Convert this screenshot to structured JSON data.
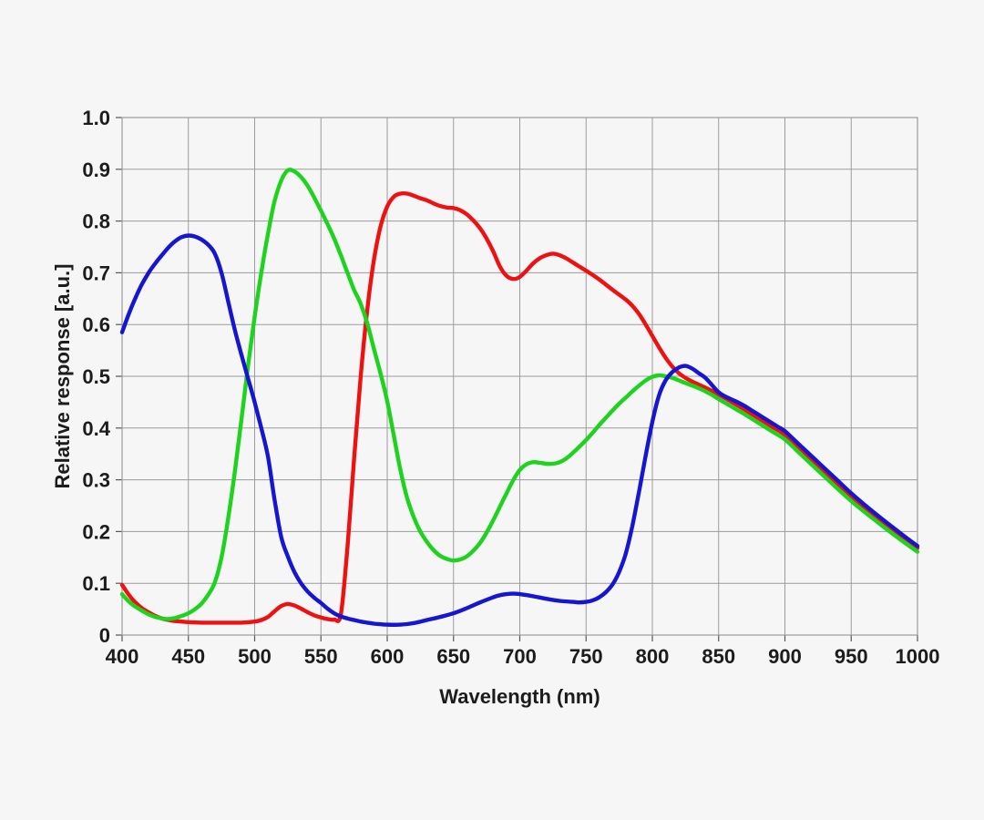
{
  "page": {
    "background": "#f6f6f6"
  },
  "chart_data": {
    "type": "line",
    "title": "",
    "xlabel": "Wavelength (nm)",
    "ylabel": "Relative response [a.u.]",
    "xlim": [
      400,
      1000
    ],
    "ylim": [
      0,
      1.0
    ],
    "grid": true,
    "legend": "none",
    "x_ticks": [
      400,
      450,
      500,
      550,
      600,
      650,
      700,
      750,
      800,
      850,
      900,
      950,
      1000
    ],
    "y_ticks": [
      0,
      0.1,
      0.2,
      0.3,
      0.4,
      0.5,
      0.6,
      0.7,
      0.8,
      0.9,
      1.0
    ],
    "y_tick_labels": [
      "0",
      "0.1",
      "0.2",
      "0.3",
      "0.4",
      "0.5",
      "0.6",
      "0.7",
      "0.8",
      "0.9",
      "1.0"
    ],
    "colors": {
      "grid": "#9b9b9b",
      "spine": "#9b9b9b",
      "tick": "#555555",
      "text": "#1c1c1c"
    },
    "series": [
      {
        "name": "red",
        "color": "#ee1111",
        "points": [
          [
            400,
            0.097
          ],
          [
            405,
            0.078
          ],
          [
            410,
            0.063
          ],
          [
            415,
            0.052
          ],
          [
            420,
            0.044
          ],
          [
            425,
            0.037
          ],
          [
            430,
            0.032
          ],
          [
            435,
            0.029
          ],
          [
            440,
            0.027
          ],
          [
            445,
            0.026
          ],
          [
            450,
            0.025
          ],
          [
            460,
            0.024
          ],
          [
            470,
            0.024
          ],
          [
            480,
            0.024
          ],
          [
            490,
            0.024
          ],
          [
            500,
            0.026
          ],
          [
            505,
            0.029
          ],
          [
            510,
            0.035
          ],
          [
            515,
            0.046
          ],
          [
            520,
            0.056
          ],
          [
            525,
            0.06
          ],
          [
            530,
            0.057
          ],
          [
            535,
            0.051
          ],
          [
            540,
            0.044
          ],
          [
            545,
            0.038
          ],
          [
            550,
            0.034
          ],
          [
            555,
            0.031
          ],
          [
            560,
            0.03
          ],
          [
            565,
            0.04
          ],
          [
            570,
            0.17
          ],
          [
            575,
            0.34
          ],
          [
            580,
            0.5
          ],
          [
            585,
            0.63
          ],
          [
            590,
            0.725
          ],
          [
            595,
            0.79
          ],
          [
            600,
            0.828
          ],
          [
            605,
            0.847
          ],
          [
            610,
            0.853
          ],
          [
            615,
            0.853
          ],
          [
            620,
            0.849
          ],
          [
            625,
            0.844
          ],
          [
            630,
            0.84
          ],
          [
            635,
            0.834
          ],
          [
            640,
            0.829
          ],
          [
            645,
            0.826
          ],
          [
            650,
            0.825
          ],
          [
            655,
            0.821
          ],
          [
            660,
            0.813
          ],
          [
            665,
            0.801
          ],
          [
            670,
            0.786
          ],
          [
            675,
            0.766
          ],
          [
            680,
            0.741
          ],
          [
            685,
            0.712
          ],
          [
            690,
            0.694
          ],
          [
            695,
            0.688
          ],
          [
            700,
            0.692
          ],
          [
            705,
            0.704
          ],
          [
            710,
            0.718
          ],
          [
            715,
            0.728
          ],
          [
            720,
            0.734
          ],
          [
            725,
            0.737
          ],
          [
            730,
            0.734
          ],
          [
            735,
            0.728
          ],
          [
            740,
            0.72
          ],
          [
            745,
            0.712
          ],
          [
            750,
            0.704
          ],
          [
            760,
            0.687
          ],
          [
            770,
            0.667
          ],
          [
            780,
            0.648
          ],
          [
            785,
            0.636
          ],
          [
            790,
            0.62
          ],
          [
            795,
            0.6
          ],
          [
            800,
            0.578
          ],
          [
            805,
            0.556
          ],
          [
            810,
            0.536
          ],
          [
            815,
            0.519
          ],
          [
            820,
            0.506
          ],
          [
            825,
            0.497
          ],
          [
            830,
            0.49
          ],
          [
            840,
            0.478
          ],
          [
            850,
            0.465
          ],
          [
            860,
            0.45
          ],
          [
            870,
            0.435
          ],
          [
            880,
            0.419
          ],
          [
            890,
            0.403
          ],
          [
            900,
            0.387
          ],
          [
            910,
            0.363
          ],
          [
            920,
            0.339
          ],
          [
            930,
            0.315
          ],
          [
            940,
            0.291
          ],
          [
            950,
            0.268
          ],
          [
            960,
            0.247
          ],
          [
            970,
            0.227
          ],
          [
            980,
            0.207
          ],
          [
            990,
            0.187
          ],
          [
            1000,
            0.168
          ]
        ]
      },
      {
        "name": "green",
        "color": "#1dd31d",
        "points": [
          [
            400,
            0.079
          ],
          [
            405,
            0.065
          ],
          [
            410,
            0.055
          ],
          [
            415,
            0.047
          ],
          [
            420,
            0.04
          ],
          [
            425,
            0.035
          ],
          [
            430,
            0.032
          ],
          [
            435,
            0.031
          ],
          [
            440,
            0.033
          ],
          [
            445,
            0.037
          ],
          [
            450,
            0.042
          ],
          [
            455,
            0.05
          ],
          [
            460,
            0.061
          ],
          [
            465,
            0.078
          ],
          [
            470,
            0.102
          ],
          [
            475,
            0.15
          ],
          [
            480,
            0.225
          ],
          [
            485,
            0.315
          ],
          [
            490,
            0.415
          ],
          [
            495,
            0.52
          ],
          [
            500,
            0.615
          ],
          [
            505,
            0.7
          ],
          [
            510,
            0.775
          ],
          [
            515,
            0.838
          ],
          [
            520,
            0.878
          ],
          [
            525,
            0.898
          ],
          [
            530,
            0.896
          ],
          [
            535,
            0.885
          ],
          [
            540,
            0.868
          ],
          [
            545,
            0.845
          ],
          [
            550,
            0.82
          ],
          [
            555,
            0.794
          ],
          [
            560,
            0.766
          ],
          [
            565,
            0.734
          ],
          [
            570,
            0.7
          ],
          [
            575,
            0.667
          ],
          [
            580,
            0.64
          ],
          [
            585,
            0.602
          ],
          [
            590,
            0.553
          ],
          [
            595,
            0.505
          ],
          [
            600,
            0.452
          ],
          [
            605,
            0.385
          ],
          [
            610,
            0.318
          ],
          [
            615,
            0.265
          ],
          [
            620,
            0.228
          ],
          [
            625,
            0.2
          ],
          [
            630,
            0.18
          ],
          [
            635,
            0.164
          ],
          [
            640,
            0.153
          ],
          [
            645,
            0.147
          ],
          [
            650,
            0.144
          ],
          [
            655,
            0.146
          ],
          [
            660,
            0.152
          ],
          [
            665,
            0.163
          ],
          [
            670,
            0.178
          ],
          [
            675,
            0.198
          ],
          [
            680,
            0.222
          ],
          [
            685,
            0.248
          ],
          [
            690,
            0.274
          ],
          [
            695,
            0.299
          ],
          [
            700,
            0.319
          ],
          [
            705,
            0.33
          ],
          [
            710,
            0.334
          ],
          [
            715,
            0.333
          ],
          [
            720,
            0.331
          ],
          [
            725,
            0.331
          ],
          [
            730,
            0.334
          ],
          [
            735,
            0.341
          ],
          [
            740,
            0.352
          ],
          [
            745,
            0.364
          ],
          [
            750,
            0.377
          ],
          [
            755,
            0.391
          ],
          [
            760,
            0.406
          ],
          [
            765,
            0.42
          ],
          [
            770,
            0.434
          ],
          [
            775,
            0.447
          ],
          [
            780,
            0.459
          ],
          [
            785,
            0.471
          ],
          [
            790,
            0.482
          ],
          [
            795,
            0.492
          ],
          [
            800,
            0.499
          ],
          [
            805,
            0.502
          ],
          [
            810,
            0.5
          ],
          [
            815,
            0.497
          ],
          [
            820,
            0.492
          ],
          [
            825,
            0.487
          ],
          [
            830,
            0.482
          ],
          [
            835,
            0.477
          ],
          [
            840,
            0.471
          ],
          [
            845,
            0.464
          ],
          [
            850,
            0.456
          ],
          [
            860,
            0.441
          ],
          [
            870,
            0.426
          ],
          [
            880,
            0.41
          ],
          [
            890,
            0.394
          ],
          [
            900,
            0.378
          ],
          [
            910,
            0.354
          ],
          [
            920,
            0.33
          ],
          [
            930,
            0.306
          ],
          [
            940,
            0.282
          ],
          [
            950,
            0.259
          ],
          [
            960,
            0.238
          ],
          [
            970,
            0.218
          ],
          [
            980,
            0.198
          ],
          [
            990,
            0.179
          ],
          [
            1000,
            0.161
          ]
        ]
      },
      {
        "name": "blue",
        "color": "#1616d0",
        "points": [
          [
            400,
            0.585
          ],
          [
            405,
            0.62
          ],
          [
            410,
            0.651
          ],
          [
            415,
            0.678
          ],
          [
            420,
            0.7
          ],
          [
            425,
            0.718
          ],
          [
            430,
            0.734
          ],
          [
            435,
            0.749
          ],
          [
            440,
            0.761
          ],
          [
            445,
            0.769
          ],
          [
            450,
            0.772
          ],
          [
            455,
            0.77
          ],
          [
            460,
            0.764
          ],
          [
            465,
            0.754
          ],
          [
            470,
            0.737
          ],
          [
            475,
            0.7
          ],
          [
            480,
            0.645
          ],
          [
            485,
            0.59
          ],
          [
            490,
            0.542
          ],
          [
            495,
            0.496
          ],
          [
            500,
            0.45
          ],
          [
            505,
            0.4
          ],
          [
            510,
            0.345
          ],
          [
            515,
            0.262
          ],
          [
            520,
            0.19
          ],
          [
            525,
            0.152
          ],
          [
            530,
            0.122
          ],
          [
            535,
            0.1
          ],
          [
            540,
            0.084
          ],
          [
            545,
            0.072
          ],
          [
            550,
            0.062
          ],
          [
            555,
            0.051
          ],
          [
            560,
            0.042
          ],
          [
            565,
            0.036
          ],
          [
            570,
            0.032
          ],
          [
            575,
            0.029
          ],
          [
            580,
            0.026
          ],
          [
            585,
            0.024
          ],
          [
            590,
            0.022
          ],
          [
            595,
            0.021
          ],
          [
            600,
            0.02
          ],
          [
            610,
            0.02
          ],
          [
            620,
            0.023
          ],
          [
            630,
            0.029
          ],
          [
            640,
            0.035
          ],
          [
            650,
            0.042
          ],
          [
            660,
            0.052
          ],
          [
            670,
            0.063
          ],
          [
            680,
            0.073
          ],
          [
            685,
            0.077
          ],
          [
            690,
            0.079
          ],
          [
            695,
            0.08
          ],
          [
            700,
            0.079
          ],
          [
            710,
            0.075
          ],
          [
            720,
            0.07
          ],
          [
            730,
            0.066
          ],
          [
            740,
            0.064
          ],
          [
            745,
            0.063
          ],
          [
            750,
            0.064
          ],
          [
            755,
            0.067
          ],
          [
            760,
            0.073
          ],
          [
            765,
            0.083
          ],
          [
            770,
            0.098
          ],
          [
            775,
            0.122
          ],
          [
            780,
            0.158
          ],
          [
            785,
            0.212
          ],
          [
            790,
            0.278
          ],
          [
            795,
            0.347
          ],
          [
            800,
            0.412
          ],
          [
            805,
            0.463
          ],
          [
            810,
            0.492
          ],
          [
            815,
            0.508
          ],
          [
            820,
            0.517
          ],
          [
            825,
            0.52
          ],
          [
            830,
            0.515
          ],
          [
            835,
            0.506
          ],
          [
            840,
            0.497
          ],
          [
            845,
            0.483
          ],
          [
            850,
            0.469
          ],
          [
            855,
            0.461
          ],
          [
            860,
            0.455
          ],
          [
            865,
            0.449
          ],
          [
            870,
            0.442
          ],
          [
            875,
            0.434
          ],
          [
            880,
            0.426
          ],
          [
            885,
            0.418
          ],
          [
            890,
            0.41
          ],
          [
            895,
            0.402
          ],
          [
            900,
            0.394
          ],
          [
            910,
            0.37
          ],
          [
            920,
            0.346
          ],
          [
            930,
            0.322
          ],
          [
            940,
            0.298
          ],
          [
            950,
            0.274
          ],
          [
            960,
            0.252
          ],
          [
            970,
            0.231
          ],
          [
            980,
            0.211
          ],
          [
            990,
            0.191
          ],
          [
            1000,
            0.172
          ]
        ]
      }
    ]
  }
}
